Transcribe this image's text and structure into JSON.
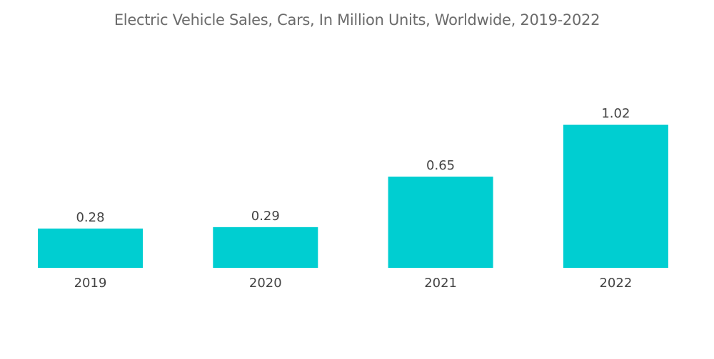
{
  "chart_data": {
    "type": "bar",
    "title": "Electric Vehicle Sales, Cars, In Million Units, Worldwide, 2019-2022",
    "categories": [
      "2019",
      "2020",
      "2021",
      "2022"
    ],
    "values": [
      0.28,
      0.29,
      0.65,
      1.02
    ],
    "data_labels": [
      "0.28",
      "0.29",
      "0.65",
      "1.02"
    ],
    "xlabel": "",
    "ylabel": "",
    "ylim": [
      0,
      1.02
    ],
    "grid": false,
    "legend": "none",
    "bar_color": "#00ced1"
  }
}
